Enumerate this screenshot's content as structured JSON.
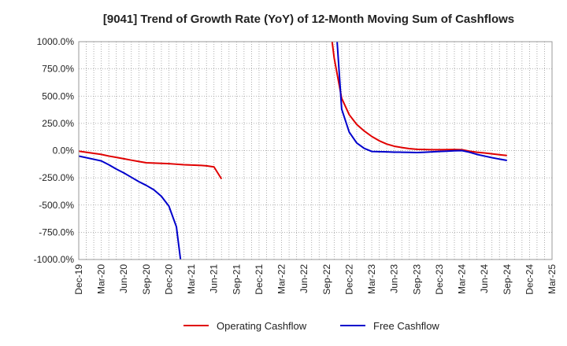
{
  "chart_data": {
    "type": "line",
    "title": "[9041]  Trend of Growth Rate (YoY) of 12-Month Moving Sum of Cashflows",
    "xlabel": "",
    "ylabel": "",
    "ylim": [
      -1000,
      1000
    ],
    "y_ticks": [
      1000,
      750,
      500,
      250,
      0,
      -250,
      -500,
      -750,
      -1000
    ],
    "y_tick_labels": [
      "1000.0%",
      "750.0%",
      "500.0%",
      "250.0%",
      "0.0%",
      "-250.0%",
      "-500.0%",
      "-750.0%",
      "-1000.0%"
    ],
    "x_tick_labels": [
      "Dec-19",
      "Mar-20",
      "Jun-20",
      "Sep-20",
      "Dec-20",
      "Mar-21",
      "Jun-21",
      "Sep-21",
      "Dec-21",
      "Mar-22",
      "Jun-22",
      "Sep-22",
      "Dec-22",
      "Mar-23",
      "Jun-23",
      "Sep-23",
      "Dec-23",
      "Mar-24",
      "Jun-24",
      "Sep-24",
      "Dec-24",
      "Mar-25"
    ],
    "x_range_months": [
      "2019-12",
      "2025-03"
    ],
    "grid": true,
    "legend_position": "bottom",
    "series": [
      {
        "name": "Operating Cashflow",
        "color": "#e00000",
        "points": [
          [
            "2019-12",
            -5
          ],
          [
            "2020-01",
            -15
          ],
          [
            "2020-02",
            -25
          ],
          [
            "2020-03",
            -35
          ],
          [
            "2020-04",
            -50
          ],
          [
            "2020-05",
            -62
          ],
          [
            "2020-06",
            -75
          ],
          [
            "2020-07",
            -88
          ],
          [
            "2020-08",
            -100
          ],
          [
            "2020-09",
            -112
          ],
          [
            "2020-10",
            -115
          ],
          [
            "2020-11",
            -117
          ],
          [
            "2020-12",
            -120
          ],
          [
            "2021-01",
            -125
          ],
          [
            "2021-02",
            -130
          ],
          [
            "2021-03",
            -133
          ],
          [
            "2021-04",
            -135
          ],
          [
            "2021-05",
            -140
          ],
          [
            "2021-06",
            -150
          ],
          [
            "2021-07",
            -260
          ]
        ],
        "segments": [
          [
            [
              "2022-09",
              1400
            ],
            [
              "2022-10",
              850
            ],
            [
              "2022-11",
              480
            ],
            [
              "2022-12",
              330
            ],
            [
              "2023-01",
              240
            ],
            [
              "2023-02",
              180
            ],
            [
              "2023-03",
              130
            ],
            [
              "2023-04",
              90
            ],
            [
              "2023-05",
              60
            ],
            [
              "2023-06",
              40
            ],
            [
              "2023-07",
              28
            ],
            [
              "2023-08",
              18
            ],
            [
              "2023-09",
              12
            ],
            [
              "2023-10",
              10
            ],
            [
              "2023-11",
              8
            ],
            [
              "2023-12",
              8
            ],
            [
              "2024-01",
              9
            ],
            [
              "2024-02",
              10
            ],
            [
              "2024-03",
              8
            ],
            [
              "2024-04",
              -5
            ],
            [
              "2024-05",
              -15
            ],
            [
              "2024-06",
              -22
            ],
            [
              "2024-07",
              -30
            ],
            [
              "2024-08",
              -38
            ],
            [
              "2024-09",
              -45
            ]
          ]
        ]
      },
      {
        "name": "Free Cashflow",
        "color": "#0000cc",
        "points": [
          [
            "2019-12",
            -50
          ],
          [
            "2020-01",
            -65
          ],
          [
            "2020-02",
            -80
          ],
          [
            "2020-03",
            -95
          ],
          [
            "2020-04",
            -130
          ],
          [
            "2020-05",
            -170
          ],
          [
            "2020-06",
            -205
          ],
          [
            "2020-07",
            -245
          ],
          [
            "2020-08",
            -285
          ],
          [
            "2020-09",
            -320
          ],
          [
            "2020-10",
            -360
          ],
          [
            "2020-11",
            -420
          ],
          [
            "2020-12",
            -510
          ],
          [
            "2021-01",
            -700
          ],
          [
            "2021-02",
            -1250
          ]
        ],
        "segments": [
          [
            [
              "2022-10",
              1400
            ],
            [
              "2022-11",
              380
            ],
            [
              "2022-12",
              170
            ],
            [
              "2023-01",
              70
            ],
            [
              "2023-02",
              20
            ],
            [
              "2023-03",
              -8
            ],
            [
              "2023-04",
              -10
            ],
            [
              "2023-05",
              -12
            ],
            [
              "2023-06",
              -14
            ],
            [
              "2023-07",
              -15
            ],
            [
              "2023-08",
              -16
            ],
            [
              "2023-09",
              -18
            ],
            [
              "2023-10",
              -15
            ],
            [
              "2023-11",
              -12
            ],
            [
              "2023-12",
              -8
            ],
            [
              "2024-01",
              -5
            ],
            [
              "2024-02",
              -2
            ],
            [
              "2024-03",
              0
            ],
            [
              "2024-04",
              -15
            ],
            [
              "2024-05",
              -35
            ],
            [
              "2024-06",
              -50
            ],
            [
              "2024-07",
              -65
            ],
            [
              "2024-08",
              -78
            ],
            [
              "2024-09",
              -90
            ]
          ]
        ]
      }
    ]
  }
}
